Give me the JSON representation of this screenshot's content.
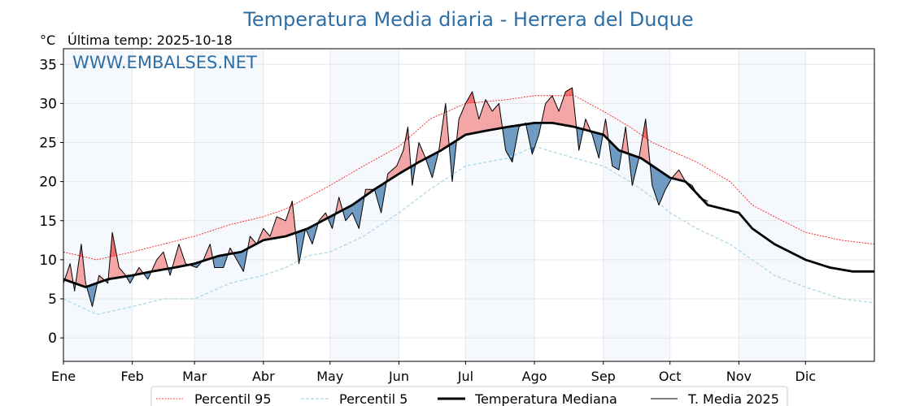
{
  "chart_data": {
    "type": "line",
    "title": "Temperatura Media diaria - Herrera del Duque",
    "unit_label": "°C",
    "last_temp_label": "Última temp: 2025-10-18",
    "watermark": "WWW.EMBALSES.NET",
    "ylim": [
      -3,
      37
    ],
    "yticks": [
      0,
      5,
      10,
      15,
      20,
      25,
      30,
      35
    ],
    "xlim": [
      0,
      365
    ],
    "month_ticks": [
      {
        "label": "Ene",
        "day": 0
      },
      {
        "label": "Feb",
        "day": 31
      },
      {
        "label": "Mar",
        "day": 59
      },
      {
        "label": "Abr",
        "day": 90
      },
      {
        "label": "May",
        "day": 120
      },
      {
        "label": "Jun",
        "day": 151
      },
      {
        "label": "Jul",
        "day": 181
      },
      {
        "label": "Ago",
        "day": 212
      },
      {
        "label": "Sep",
        "day": 243
      },
      {
        "label": "Oct",
        "day": 273
      },
      {
        "label": "Nov",
        "day": 304
      },
      {
        "label": "Dic",
        "day": 334
      }
    ],
    "grid": true,
    "legend_position": "bottom",
    "colors": {
      "p95": "#ff0000",
      "p5": "#add8e6",
      "median": "#000000",
      "current": "#000000",
      "above": "#f4a6a6",
      "above_extreme": "#f07070",
      "below": "#6f9ac2",
      "below_extreme": "#1f5f9a",
      "title": "#2e6ea6",
      "band": "#f5f9fd"
    },
    "series": [
      {
        "name": "Percentil 95",
        "key": "p95",
        "x": [
          0,
          15,
          31,
          45,
          59,
          75,
          90,
          100,
          110,
          120,
          135,
          151,
          165,
          181,
          200,
          212,
          230,
          243,
          255,
          265,
          273,
          285,
          300,
          310,
          320,
          334,
          350,
          365
        ],
        "values": [
          11,
          10,
          11,
          12,
          13,
          14.5,
          15.5,
          16.5,
          18,
          19.5,
          22,
          24.5,
          28,
          30,
          30.5,
          31,
          31,
          29,
          27,
          25,
          24,
          22.5,
          20,
          17,
          15.5,
          13.5,
          12.5,
          12
        ]
      },
      {
        "name": "Percentil 5",
        "key": "p5",
        "x": [
          0,
          15,
          31,
          45,
          59,
          75,
          90,
          100,
          110,
          120,
          135,
          151,
          165,
          181,
          200,
          212,
          230,
          243,
          255,
          265,
          273,
          285,
          300,
          310,
          320,
          334,
          350,
          365
        ],
        "values": [
          5,
          3,
          4,
          5,
          5,
          7,
          8,
          9,
          10.5,
          11,
          13,
          16,
          19,
          22,
          23,
          24.5,
          23,
          22,
          20,
          18,
          16,
          14,
          12,
          10,
          8,
          6.5,
          5,
          4.5
        ]
      },
      {
        "name": "Temperatura Mediana",
        "key": "median",
        "x": [
          0,
          10,
          20,
          31,
          40,
          50,
          59,
          70,
          80,
          90,
          100,
          110,
          120,
          130,
          140,
          151,
          160,
          170,
          181,
          190,
          200,
          212,
          220,
          230,
          243,
          250,
          260,
          273,
          280,
          290,
          304,
          310,
          320,
          334,
          345,
          355,
          365
        ],
        "values": [
          7.5,
          6.5,
          7.5,
          8,
          8.5,
          9,
          9.5,
          10.5,
          11,
          12.5,
          13,
          14,
          15.5,
          17,
          19,
          21,
          22.5,
          24,
          26,
          26.5,
          27,
          27.5,
          27.5,
          27,
          26,
          24,
          23,
          20.5,
          20,
          17,
          16,
          14,
          12,
          10,
          9,
          8.5,
          8.5
        ]
      },
      {
        "name": "T. Media 2025",
        "key": "current",
        "x": [
          0,
          3,
          5,
          8,
          10,
          13,
          16,
          20,
          22,
          25,
          28,
          30,
          34,
          38,
          42,
          45,
          48,
          52,
          55,
          60,
          63,
          66,
          68,
          72,
          75,
          78,
          81,
          84,
          87,
          90,
          93,
          96,
          100,
          103,
          106,
          109,
          112,
          115,
          118,
          121,
          124,
          127,
          130,
          133,
          136,
          140,
          143,
          146,
          150,
          153,
          155,
          157,
          160,
          163,
          166,
          169,
          172,
          175,
          178,
          181,
          184,
          187,
          190,
          193,
          196,
          199,
          202,
          205,
          208,
          211,
          214,
          217,
          220,
          223,
          226,
          229,
          232,
          235,
          238,
          241,
          244,
          247,
          250,
          253,
          256,
          259,
          262,
          265,
          268,
          271,
          274,
          277,
          280,
          283,
          286,
          290
        ],
        "values": [
          7,
          9.5,
          6,
          12,
          7,
          4,
          8,
          7,
          13.5,
          9,
          8,
          7,
          9,
          7.5,
          10,
          11,
          8,
          12,
          9.5,
          9,
          10,
          12,
          9,
          9,
          11.5,
          10,
          8.5,
          13,
          12,
          14,
          13,
          15.5,
          15,
          17.5,
          9.5,
          14,
          12,
          15,
          16,
          14,
          18,
          15,
          16,
          14,
          19,
          19,
          16,
          21,
          22,
          24,
          27,
          19.5,
          25,
          23,
          20.5,
          24,
          30,
          20,
          28,
          30,
          31.5,
          28,
          30.5,
          29,
          30,
          24,
          22.5,
          27,
          27.5,
          23.5,
          26,
          30,
          31,
          29,
          31.5,
          32,
          24,
          28,
          26,
          23,
          28,
          22,
          21.5,
          27,
          19.5,
          23,
          28,
          19.5,
          17,
          19,
          20.5,
          21.5,
          20,
          19.5,
          18,
          17.5
        ]
      }
    ],
    "legend": [
      "Percentil 95",
      "Percentil 5",
      "Temperatura Mediana",
      "T. Media 2025"
    ]
  }
}
